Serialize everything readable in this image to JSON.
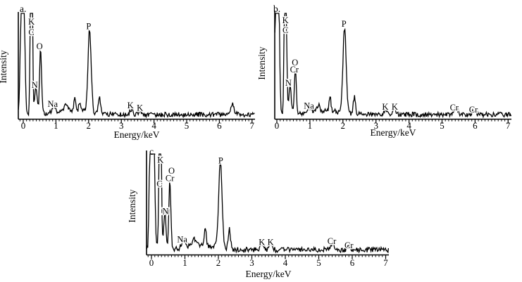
{
  "figure": {
    "background": "#ffffff",
    "line_color": "#000000",
    "text_color": "#000000",
    "halo_color": "#ffffff"
  },
  "chart_data": [
    {
      "type": "line",
      "panel_label": "a.",
      "xlabel": "Energy/keV",
      "ylabel": "Intensity",
      "xlim": [
        -0.15,
        7.1
      ],
      "ylim": [
        0,
        1
      ],
      "grid": false,
      "xticks": [
        0,
        1,
        2,
        3,
        4,
        5,
        6,
        7
      ],
      "seed": 7,
      "noise": {
        "base": 0.012,
        "amp": 0.045
      },
      "peaks": [
        {
          "element": "zero-strobe",
          "energy": -0.02,
          "height": 2.5,
          "sigma": 0.045
        },
        {
          "element": "C+K",
          "energy": 0.25,
          "height": 2.3,
          "sigma": 0.028
        },
        {
          "element": "N",
          "energy": 0.39,
          "height": 0.26,
          "sigma": 0.035
        },
        {
          "element": "O",
          "energy": 0.53,
          "height": 0.62,
          "sigma": 0.03
        },
        {
          "element": "Na",
          "energy": 0.92,
          "height": 0.055,
          "sigma": 0.05
        },
        {
          "element": "",
          "energy": 1.3,
          "height": 0.05,
          "sigma": 0.05
        },
        {
          "element": "",
          "energy": 1.5,
          "height": 0.04,
          "sigma": 0.45
        },
        {
          "element": "",
          "energy": 1.58,
          "height": 0.12,
          "sigma": 0.028
        },
        {
          "element": "",
          "energy": 1.73,
          "height": 0.09,
          "sigma": 0.028
        },
        {
          "element": "P",
          "energy": 2.03,
          "height": 0.8,
          "sigma": 0.048
        },
        {
          "element": "",
          "energy": 2.33,
          "height": 0.17,
          "sigma": 0.033
        },
        {
          "element": "K",
          "energy": 3.31,
          "height": 0.05,
          "sigma": 0.045
        },
        {
          "element": "K",
          "energy": 3.58,
          "height": 0.04,
          "sigma": 0.045
        },
        {
          "element": "",
          "energy": 6.4,
          "height": 0.1,
          "sigma": 0.05
        }
      ],
      "peak_annotations": [
        {
          "element": "K",
          "energy": 0.25,
          "yfrac": 0.887
        },
        {
          "element": "C",
          "energy": 0.25,
          "yfrac": 0.787
        },
        {
          "element": "O",
          "energy": 0.5,
          "yfrac": 0.655
        },
        {
          "element": "N",
          "energy": 0.35,
          "yfrac": 0.287
        },
        {
          "element": "Na",
          "energy": 0.9,
          "yfrac": 0.107
        },
        {
          "element": "P",
          "energy": 2.0,
          "yfrac": 0.845
        },
        {
          "element": "K",
          "energy": 3.28,
          "yfrac": 0.095
        },
        {
          "element": "K",
          "energy": 3.57,
          "yfrac": 0.07
        }
      ]
    },
    {
      "type": "line",
      "panel_label": "b.",
      "xlabel": "Energy/keV",
      "ylabel": "Intensity",
      "xlim": [
        -0.06,
        7.1
      ],
      "ylim": [
        0,
        1
      ],
      "grid": false,
      "xticks": [
        0,
        1,
        2,
        3,
        4,
        5,
        6,
        7
      ],
      "seed": 3,
      "noise": {
        "base": 0.012,
        "amp": 0.045
      },
      "peaks": [
        {
          "element": "",
          "energy": -0.055,
          "height": 0.45,
          "sigma": 0.02
        },
        {
          "element": "zero-strobe",
          "energy": 0.02,
          "height": 2.5,
          "sigma": 0.04
        },
        {
          "element": "C+K",
          "energy": 0.26,
          "height": 2.3,
          "sigma": 0.028
        },
        {
          "element": "N",
          "energy": 0.4,
          "height": 0.28,
          "sigma": 0.035
        },
        {
          "element": "O+Cr",
          "energy": 0.56,
          "height": 0.43,
          "sigma": 0.03
        },
        {
          "element": "Na",
          "energy": 0.97,
          "height": 0.05,
          "sigma": 0.05
        },
        {
          "element": "",
          "energy": 1.25,
          "height": 0.06,
          "sigma": 0.05
        },
        {
          "element": "",
          "energy": 1.5,
          "height": 0.035,
          "sigma": 0.45
        },
        {
          "element": "",
          "energy": 1.61,
          "height": 0.15,
          "sigma": 0.026
        },
        {
          "element": "P",
          "energy": 2.05,
          "height": 0.82,
          "sigma": 0.048
        },
        {
          "element": "",
          "energy": 2.35,
          "height": 0.17,
          "sigma": 0.032
        },
        {
          "element": "K",
          "energy": 3.3,
          "height": 0.045,
          "sigma": 0.045
        },
        {
          "element": "K",
          "energy": 3.56,
          "height": 0.038,
          "sigma": 0.045
        },
        {
          "element": "Cr",
          "energy": 5.42,
          "height": 0.065,
          "sigma": 0.055
        },
        {
          "element": "Cr",
          "energy": 5.95,
          "height": 0.04,
          "sigma": 0.045
        }
      ],
      "peak_annotations": [
        {
          "element": "K",
          "energy": 0.26,
          "yfrac": 0.9
        },
        {
          "element": "C",
          "energy": 0.26,
          "yfrac": 0.807
        },
        {
          "element": "O",
          "energy": 0.55,
          "yfrac": 0.5
        },
        {
          "element": "Cr",
          "energy": 0.53,
          "yfrac": 0.433
        },
        {
          "element": "N",
          "energy": 0.35,
          "yfrac": 0.307
        },
        {
          "element": "Na",
          "energy": 0.97,
          "yfrac": 0.09
        },
        {
          "element": "P",
          "energy": 2.03,
          "yfrac": 0.867
        },
        {
          "element": "K",
          "energy": 3.28,
          "yfrac": 0.08
        },
        {
          "element": "K",
          "energy": 3.57,
          "yfrac": 0.08
        },
        {
          "element": "Cr",
          "energy": 5.37,
          "yfrac": 0.075
        },
        {
          "element": "Cr",
          "energy": 5.95,
          "yfrac": 0.055
        }
      ]
    },
    {
      "type": "line",
      "panel_label": "c.",
      "xlabel": "Energy/keV",
      "ylabel": "Intensity",
      "xlim": [
        -0.15,
        7.1
      ],
      "ylim": [
        0,
        1
      ],
      "grid": false,
      "xticks": [
        0,
        1,
        2,
        3,
        4,
        5,
        6,
        7
      ],
      "seed": 11,
      "noise": {
        "base": 0.015,
        "amp": 0.05
      },
      "peaks": [
        {
          "element": "",
          "energy": -0.06,
          "height": 0.5,
          "sigma": 0.02
        },
        {
          "element": "zero-strobe",
          "energy": 0.03,
          "height": 2.5,
          "sigma": 0.045
        },
        {
          "element": "C+K",
          "energy": 0.26,
          "height": 2.3,
          "sigma": 0.028
        },
        {
          "element": "N",
          "energy": 0.4,
          "height": 0.38,
          "sigma": 0.035
        },
        {
          "element": "O+Cr",
          "energy": 0.55,
          "height": 0.66,
          "sigma": 0.03
        },
        {
          "element": "Na",
          "energy": 0.95,
          "height": 0.07,
          "sigma": 0.05
        },
        {
          "element": "",
          "energy": 1.28,
          "height": 0.07,
          "sigma": 0.05
        },
        {
          "element": "",
          "energy": 1.5,
          "height": 0.045,
          "sigma": 0.45
        },
        {
          "element": "",
          "energy": 1.61,
          "height": 0.17,
          "sigma": 0.026
        },
        {
          "element": "P",
          "energy": 2.06,
          "height": 0.87,
          "sigma": 0.05
        },
        {
          "element": "",
          "energy": 2.33,
          "height": 0.19,
          "sigma": 0.034
        },
        {
          "element": "K",
          "energy": 3.31,
          "height": 0.05,
          "sigma": 0.045
        },
        {
          "element": "K",
          "energy": 3.57,
          "height": 0.04,
          "sigma": 0.045
        },
        {
          "element": "Cr",
          "energy": 5.42,
          "height": 0.06,
          "sigma": 0.055
        },
        {
          "element": "Cr",
          "energy": 5.9,
          "height": 0.04,
          "sigma": 0.045
        }
      ],
      "peak_annotations": [
        {
          "element": "K",
          "energy": 0.27,
          "yfrac": 0.893
        },
        {
          "element": "C",
          "energy": 0.24,
          "yfrac": 0.66
        },
        {
          "element": "O",
          "energy": 0.6,
          "yfrac": 0.787
        },
        {
          "element": "Cr",
          "energy": 0.55,
          "yfrac": 0.713
        },
        {
          "element": "N",
          "energy": 0.42,
          "yfrac": 0.39
        },
        {
          "element": "Na",
          "energy": 0.92,
          "yfrac": 0.115
        },
        {
          "element": "P",
          "energy": 2.07,
          "yfrac": 0.885
        },
        {
          "element": "K",
          "energy": 3.3,
          "yfrac": 0.085
        },
        {
          "element": "K",
          "energy": 3.56,
          "yfrac": 0.085
        },
        {
          "element": "Cr",
          "energy": 5.39,
          "yfrac": 0.095
        },
        {
          "element": "Cr",
          "energy": 5.9,
          "yfrac": 0.055
        }
      ]
    }
  ]
}
